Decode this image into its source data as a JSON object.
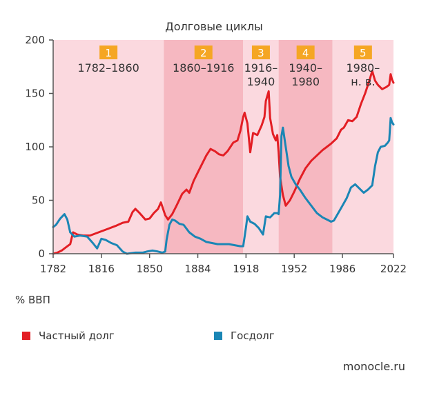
{
  "chart_data": {
    "type": "line",
    "title": "Долговые циклы",
    "xlabel": "",
    "ylabel": "% ВВП",
    "xlim": [
      1782,
      2022
    ],
    "ylim": [
      0,
      200
    ],
    "x_ticks": [
      "1782",
      "1816",
      "1850",
      "1884",
      "1918",
      "1952",
      "1986",
      "2022"
    ],
    "y_ticks": [
      "0",
      "50",
      "100",
      "150",
      "200"
    ],
    "cycles": [
      {
        "number": "1",
        "range_line1": "1782–1860",
        "range_line2": "",
        "start": 1782,
        "end": 1860,
        "shade": "#fbd9df"
      },
      {
        "number": "2",
        "range_line1": "1860–1916",
        "range_line2": "",
        "start": 1860,
        "end": 1916,
        "shade": "#f6b8c1"
      },
      {
        "number": "3",
        "range_line1": "1916–",
        "range_line2": "1940",
        "start": 1916,
        "end": 1941,
        "shade": "#fbd9df"
      },
      {
        "number": "4",
        "range_line1": "1940–",
        "range_line2": "1980",
        "start": 1941,
        "end": 1979,
        "shade": "#f6b8c1"
      },
      {
        "number": "5",
        "range_line1": "1980–",
        "range_line2": "н. в.",
        "start": 1979,
        "end": 2022,
        "shade": "#fbd9df"
      }
    ],
    "series": [
      {
        "name": "Частный долг",
        "color": "#e31e24",
        "points": [
          [
            1782,
            0
          ],
          [
            1785,
            1
          ],
          [
            1788,
            3
          ],
          [
            1791,
            6
          ],
          [
            1794,
            9
          ],
          [
            1796,
            20
          ],
          [
            1799,
            18
          ],
          [
            1803,
            17
          ],
          [
            1808,
            17
          ],
          [
            1814,
            20
          ],
          [
            1820,
            23
          ],
          [
            1826,
            26
          ],
          [
            1831,
            29
          ],
          [
            1835,
            30
          ],
          [
            1838,
            39
          ],
          [
            1840,
            42
          ],
          [
            1843,
            38
          ],
          [
            1847,
            32
          ],
          [
            1850,
            33
          ],
          [
            1853,
            38
          ],
          [
            1856,
            42
          ],
          [
            1858,
            48
          ],
          [
            1859,
            44
          ],
          [
            1861,
            36
          ],
          [
            1863,
            32
          ],
          [
            1866,
            37
          ],
          [
            1869,
            45
          ],
          [
            1873,
            56
          ],
          [
            1876,
            60
          ],
          [
            1878,
            57
          ],
          [
            1881,
            68
          ],
          [
            1884,
            76
          ],
          [
            1887,
            84
          ],
          [
            1890,
            92
          ],
          [
            1893,
            98
          ],
          [
            1896,
            96
          ],
          [
            1899,
            93
          ],
          [
            1902,
            92
          ],
          [
            1905,
            96
          ],
          [
            1909,
            104
          ],
          [
            1912,
            106
          ],
          [
            1914,
            115
          ],
          [
            1916,
            128
          ],
          [
            1917,
            132
          ],
          [
            1919,
            122
          ],
          [
            1921,
            95
          ],
          [
            1923,
            113
          ],
          [
            1926,
            111
          ],
          [
            1929,
            120
          ],
          [
            1931,
            128
          ],
          [
            1932,
            143
          ],
          [
            1934,
            152
          ],
          [
            1935,
            127
          ],
          [
            1937,
            112
          ],
          [
            1939,
            106
          ],
          [
            1940,
            111
          ],
          [
            1941,
            95
          ],
          [
            1942,
            72
          ],
          [
            1944,
            55
          ],
          [
            1946,
            45
          ],
          [
            1949,
            50
          ],
          [
            1952,
            58
          ],
          [
            1956,
            70
          ],
          [
            1960,
            80
          ],
          [
            1964,
            87
          ],
          [
            1968,
            92
          ],
          [
            1972,
            97
          ],
          [
            1975,
            100
          ],
          [
            1978,
            103
          ],
          [
            1982,
            108
          ],
          [
            1985,
            116
          ],
          [
            1987,
            118
          ],
          [
            1990,
            125
          ],
          [
            1993,
            124
          ],
          [
            1996,
            128
          ],
          [
            1999,
            140
          ],
          [
            2002,
            150
          ],
          [
            2005,
            162
          ],
          [
            2007,
            171
          ],
          [
            2009,
            162
          ],
          [
            2011,
            158
          ],
          [
            2014,
            154
          ],
          [
            2017,
            156
          ],
          [
            2019,
            158
          ],
          [
            2020,
            168
          ],
          [
            2021,
            163
          ],
          [
            2022,
            160
          ]
        ]
      },
      {
        "name": "Госдолг",
        "color": "#1a86b5",
        "points": [
          [
            1782,
            25
          ],
          [
            1784,
            27
          ],
          [
            1787,
            33
          ],
          [
            1790,
            37
          ],
          [
            1792,
            32
          ],
          [
            1794,
            20
          ],
          [
            1797,
            16
          ],
          [
            1801,
            17
          ],
          [
            1806,
            16
          ],
          [
            1810,
            10
          ],
          [
            1813,
            5
          ],
          [
            1816,
            14
          ],
          [
            1819,
            13
          ],
          [
            1823,
            10
          ],
          [
            1827,
            8
          ],
          [
            1831,
            2
          ],
          [
            1834,
            0
          ],
          [
            1840,
            1
          ],
          [
            1845,
            1
          ],
          [
            1848,
            2
          ],
          [
            1852,
            3
          ],
          [
            1856,
            2
          ],
          [
            1859,
            1
          ],
          [
            1861,
            2
          ],
          [
            1862,
            13
          ],
          [
            1864,
            27
          ],
          [
            1866,
            32
          ],
          [
            1868,
            31
          ],
          [
            1871,
            28
          ],
          [
            1874,
            27
          ],
          [
            1878,
            20
          ],
          [
            1882,
            16
          ],
          [
            1886,
            14
          ],
          [
            1890,
            11
          ],
          [
            1894,
            10
          ],
          [
            1898,
            9
          ],
          [
            1902,
            9
          ],
          [
            1906,
            9
          ],
          [
            1910,
            8
          ],
          [
            1914,
            7
          ],
          [
            1916,
            7
          ],
          [
            1918,
            25
          ],
          [
            1919,
            35
          ],
          [
            1921,
            30
          ],
          [
            1924,
            28
          ],
          [
            1927,
            24
          ],
          [
            1930,
            18
          ],
          [
            1932,
            35
          ],
          [
            1935,
            34
          ],
          [
            1938,
            38
          ],
          [
            1940,
            38
          ],
          [
            1941,
            37
          ],
          [
            1942,
            55
          ],
          [
            1943,
            110
          ],
          [
            1944,
            118
          ],
          [
            1946,
            100
          ],
          [
            1948,
            82
          ],
          [
            1950,
            72
          ],
          [
            1953,
            65
          ],
          [
            1956,
            60
          ],
          [
            1960,
            52
          ],
          [
            1964,
            45
          ],
          [
            1968,
            38
          ],
          [
            1972,
            34
          ],
          [
            1975,
            32
          ],
          [
            1978,
            30
          ],
          [
            1980,
            31
          ],
          [
            1983,
            38
          ],
          [
            1986,
            45
          ],
          [
            1989,
            52
          ],
          [
            1992,
            62
          ],
          [
            1995,
            65
          ],
          [
            1998,
            61
          ],
          [
            2001,
            57
          ],
          [
            2004,
            60
          ],
          [
            2007,
            64
          ],
          [
            2009,
            82
          ],
          [
            2011,
            95
          ],
          [
            2013,
            100
          ],
          [
            2016,
            101
          ],
          [
            2018,
            104
          ],
          [
            2019,
            106
          ],
          [
            2020,
            127
          ],
          [
            2021,
            123
          ],
          [
            2022,
            121
          ]
        ]
      }
    ]
  },
  "legend": {
    "unit": "% ВВП",
    "items": [
      {
        "label": "Частный долг",
        "color": "#e31e24"
      },
      {
        "label": "Госдолг",
        "color": "#1a86b5"
      }
    ]
  },
  "source": "monocle.ru",
  "colors": {
    "badge": "#f5a623",
    "axis": "#555555"
  }
}
